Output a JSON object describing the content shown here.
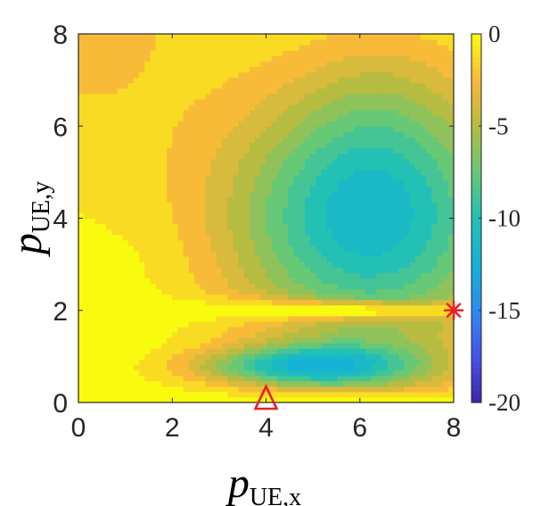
{
  "chart_data": {
    "type": "heatmap",
    "subtype": "filled-contour",
    "title": "",
    "xlabel": "p_{UE,x}",
    "ylabel": "p_{UE,y}",
    "xlabel_parts": {
      "base": "p",
      "sub": "UE,x"
    },
    "ylabel_parts": {
      "base": "p",
      "sub": "UE,y"
    },
    "xlim": [
      0,
      8
    ],
    "ylim": [
      0,
      8
    ],
    "xticks": [
      0,
      2,
      4,
      6,
      8
    ],
    "yticks": [
      0,
      2,
      4,
      6,
      8
    ],
    "xtick_labels": [
      "0",
      "2",
      "4",
      "6",
      "8"
    ],
    "ytick_labels": [
      "0",
      "2",
      "4",
      "6",
      "8"
    ],
    "colorbar": {
      "range": [
        -20,
        0
      ],
      "ticks": [
        0,
        -5,
        -10,
        -15,
        -20
      ],
      "tick_labels": [
        "0",
        "-5",
        "-10",
        "-15",
        "-20"
      ],
      "colormap": "parula"
    },
    "z_samples": {
      "description_units": "colorbar units",
      "max_value_region": "near y = 2 (horizontal band) and lower-left area",
      "minimum_upper": {
        "x": 6.2,
        "y": 4.0,
        "value": -12
      },
      "minimum_lower": {
        "x": 5.0,
        "y": 0.8,
        "value": -11
      }
    },
    "markers": [
      {
        "type": "triangle",
        "x": 4,
        "y": 0,
        "color": "#e8202a"
      },
      {
        "type": "asterisk",
        "x": 8,
        "y": 2,
        "color": "#e8202a"
      }
    ]
  },
  "colors": {
    "marker": "#e8202a",
    "axis": "#262626"
  }
}
